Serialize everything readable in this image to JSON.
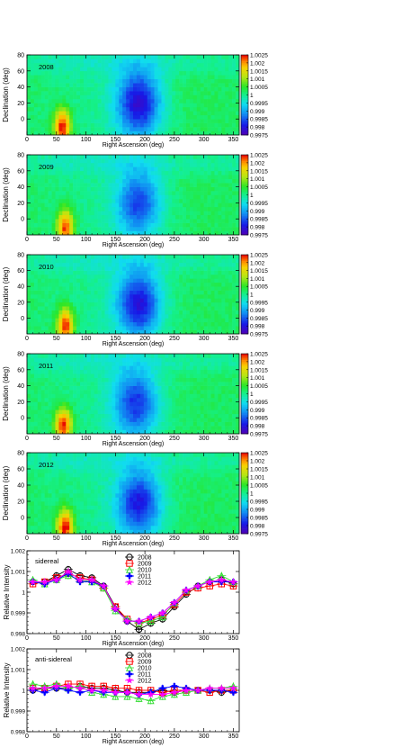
{
  "chart_data": [
    {
      "type": "heatmap",
      "panel_label": "2008",
      "xlabel": "Right Ascension (deg)",
      "ylabel": "Declination (deg)",
      "xlim": [
        0,
        360
      ],
      "ylim": [
        -20,
        80
      ],
      "xticks": [
        "0",
        "50",
        "100",
        "150",
        "200",
        "250",
        "300",
        "350"
      ],
      "yticks": [
        "0",
        "20",
        "40",
        "60",
        "80"
      ],
      "colorbar": {
        "range": [
          0.9975,
          1.0025
        ],
        "ticks": [
          "1.0025",
          "1.002",
          "1.0015",
          "1.001",
          "1.0005",
          "1",
          "0.9995",
          "0.999",
          "0.9985",
          "0.998",
          "0.9975"
        ]
      },
      "excess": {
        "ra": 60,
        "dec": -10,
        "peak": 1.0025
      },
      "deficit": {
        "ra": 190,
        "dec": 20,
        "min": 0.9978
      }
    },
    {
      "type": "heatmap",
      "panel_label": "2009",
      "xlabel": "Right Ascension (deg)",
      "ylabel": "Declination (deg)",
      "xlim": [
        0,
        360
      ],
      "ylim": [
        -20,
        80
      ],
      "xticks": [
        "0",
        "50",
        "100",
        "150",
        "200",
        "250",
        "300",
        "350"
      ],
      "yticks": [
        "0",
        "20",
        "40",
        "60",
        "80"
      ],
      "colorbar": {
        "range": [
          0.9975,
          1.0025
        ],
        "ticks": [
          "1.0025",
          "1.002",
          "1.0015",
          "1.001",
          "1.0005",
          "1",
          "0.9995",
          "0.999",
          "0.9985",
          "0.998",
          "0.9975"
        ]
      },
      "excess": {
        "ra": 65,
        "dec": -10,
        "peak": 1.0023
      },
      "deficit": {
        "ra": 190,
        "dec": 20,
        "min": 0.9983
      }
    },
    {
      "type": "heatmap",
      "panel_label": "2010",
      "xlabel": "Right Ascension (deg)",
      "ylabel": "Declination (deg)",
      "xlim": [
        0,
        360
      ],
      "ylim": [
        -20,
        80
      ],
      "xticks": [
        "0",
        "50",
        "100",
        "150",
        "200",
        "250",
        "300",
        "350"
      ],
      "yticks": [
        "0",
        "20",
        "40",
        "60",
        "80"
      ],
      "colorbar": {
        "range": [
          0.9975,
          1.0025
        ],
        "ticks": [
          "1.0025",
          "1.002",
          "1.0015",
          "1.001",
          "1.0005",
          "1",
          "0.9995",
          "0.999",
          "0.9985",
          "0.998",
          "0.9975"
        ]
      },
      "excess": {
        "ra": 65,
        "dec": -10,
        "peak": 1.0024
      },
      "deficit": {
        "ra": 190,
        "dec": 18,
        "min": 0.9979
      }
    },
    {
      "type": "heatmap",
      "panel_label": "2011",
      "xlabel": "Right Ascension (deg)",
      "ylabel": "Declination (deg)",
      "xlim": [
        0,
        360
      ],
      "ylim": [
        -20,
        80
      ],
      "xticks": [
        "0",
        "50",
        "100",
        "150",
        "200",
        "250",
        "300",
        "350"
      ],
      "yticks": [
        "0",
        "20",
        "40",
        "60",
        "80"
      ],
      "colorbar": {
        "range": [
          0.9975,
          1.0025
        ],
        "ticks": [
          "1.0025",
          "1.002",
          "1.0015",
          "1.001",
          "1.0005",
          "1",
          "0.9995",
          "0.999",
          "0.9985",
          "0.998",
          "0.9975"
        ]
      },
      "excess": {
        "ra": 62,
        "dec": -10,
        "peak": 1.0024
      },
      "deficit": {
        "ra": 185,
        "dec": 18,
        "min": 0.9982
      }
    },
    {
      "type": "heatmap",
      "panel_label": "2012",
      "xlabel": "Right Ascension (deg)",
      "ylabel": "Declination (deg)",
      "xlim": [
        0,
        360
      ],
      "ylim": [
        -20,
        80
      ],
      "xticks": [
        "0",
        "50",
        "100",
        "150",
        "200",
        "250",
        "300",
        "350"
      ],
      "yticks": [
        "0",
        "20",
        "40",
        "60",
        "80"
      ],
      "colorbar": {
        "range": [
          0.9975,
          1.0025
        ],
        "ticks": [
          "1.0025",
          "1.002",
          "1.0015",
          "1.001",
          "1.0005",
          "1",
          "0.9995",
          "0.999",
          "0.9985",
          "0.998",
          "0.9975"
        ]
      },
      "excess": {
        "ra": 65,
        "dec": -12,
        "peak": 1.0025
      },
      "deficit": {
        "ra": 190,
        "dec": 18,
        "min": 0.998
      }
    },
    {
      "type": "line",
      "panel_label": "sidereal",
      "xlabel": "Right Ascension (deg)",
      "ylabel": "Relative Intensity",
      "xlim": [
        0,
        360
      ],
      "ylim": [
        0.998,
        1.002
      ],
      "xticks": [
        "0",
        "50",
        "100",
        "150",
        "200",
        "250",
        "300",
        "350"
      ],
      "yticks": [
        "0.998",
        "0.999",
        "1",
        "1.001",
        "1.002"
      ],
      "legend": "top-center",
      "x": [
        10,
        30,
        50,
        70,
        90,
        110,
        130,
        150,
        170,
        190,
        210,
        230,
        250,
        270,
        290,
        310,
        330,
        350
      ],
      "series": [
        {
          "name": "2008",
          "color": "#000000",
          "marker": "circle",
          "values": [
            1.0005,
            1.0005,
            1.0008,
            1.0011,
            1.0008,
            1.0007,
            1.0003,
            0.9993,
            0.9986,
            0.9982,
            0.9985,
            0.9987,
            0.9993,
            0.9999,
            1.0003,
            1.0005,
            1.0006,
            1.0004
          ]
        },
        {
          "name": "2009",
          "color": "#ff0000",
          "marker": "square",
          "values": [
            1.0004,
            1.0005,
            1.0007,
            1.0009,
            1.0007,
            1.0006,
            1.0002,
            0.9993,
            0.9987,
            0.9985,
            0.9987,
            0.9989,
            0.9994,
            1.0,
            1.0002,
            1.0003,
            1.0004,
            1.0003
          ]
        },
        {
          "name": "2010",
          "color": "#33dd33",
          "marker": "triangle",
          "values": [
            1.0006,
            1.0004,
            1.0006,
            1.0008,
            1.0006,
            1.0005,
            1.0002,
            0.9991,
            0.9987,
            0.9985,
            0.9986,
            0.9988,
            0.9995,
            1.0001,
            1.0003,
            1.0006,
            1.0008,
            1.0005
          ]
        },
        {
          "name": "2011",
          "color": "#0000ff",
          "marker": "cross",
          "values": [
            1.0005,
            1.0004,
            1.0006,
            1.0009,
            1.0005,
            1.0005,
            1.0003,
            0.9992,
            0.9986,
            0.9986,
            0.9988,
            0.999,
            0.9995,
            1.0001,
            1.0003,
            1.0005,
            1.0005,
            1.0005
          ]
        },
        {
          "name": "2012",
          "color": "#ff00ff",
          "marker": "star",
          "values": [
            1.0005,
            1.0005,
            1.0006,
            1.001,
            1.0006,
            1.0006,
            1.0003,
            0.9992,
            0.9986,
            0.9986,
            0.9988,
            0.999,
            0.9995,
            1.0001,
            1.0003,
            1.0005,
            1.0006,
            1.0005
          ]
        }
      ]
    },
    {
      "type": "line",
      "panel_label": "anti-sidereal",
      "xlabel": "Right Ascension (deg)",
      "ylabel": "Relative Intensity",
      "xlim": [
        0,
        360
      ],
      "ylim": [
        0.998,
        1.002
      ],
      "xticks": [
        "0",
        "50",
        "100",
        "150",
        "200",
        "250",
        "300",
        "350"
      ],
      "yticks": [
        "0.998",
        "0.999",
        "1",
        "1.001",
        "1.002"
      ],
      "legend": "top-center",
      "x": [
        10,
        30,
        50,
        70,
        90,
        110,
        130,
        150,
        170,
        190,
        210,
        230,
        250,
        270,
        290,
        310,
        330,
        350
      ],
      "series": [
        {
          "name": "2008",
          "color": "#000000",
          "marker": "circle",
          "values": [
            1.0,
            1.0001,
            1.0001,
            1.0001,
            1.0002,
            1.0001,
            1.0001,
            1.0,
            0.9999,
            0.9999,
            0.9999,
            1.0,
            0.9999,
            1.0,
            1.0,
            1.0,
            0.9999,
            1.0
          ]
        },
        {
          "name": "2009",
          "color": "#ff0000",
          "marker": "square",
          "values": [
            1.0001,
            1.0001,
            1.0002,
            1.0003,
            1.0003,
            1.0002,
            1.0002,
            1.0001,
            1.0001,
            1.0,
            1.0,
            0.9999,
            1.0,
            1.0,
            1.0,
            0.9999,
            1.0,
            1.0
          ]
        },
        {
          "name": "2010",
          "color": "#33dd33",
          "marker": "triangle",
          "values": [
            1.0003,
            1.0002,
            1.0003,
            1.0001,
            1.0002,
            0.9999,
            0.9998,
            0.9997,
            0.9997,
            0.9996,
            0.9995,
            0.9997,
            0.9998,
            0.9999,
            1.0,
            1.0001,
            1.0001,
            1.0002
          ]
        },
        {
          "name": "2011",
          "color": "#0000ff",
          "marker": "cross",
          "values": [
            1.0,
            0.9999,
            1.0001,
            1.0,
            0.9999,
            1.0,
            0.9999,
            0.9999,
            0.9999,
            0.9998,
            0.9999,
            1.0001,
            1.0002,
            1.0001,
            1.0,
            1.0,
            1.0,
            0.9999
          ]
        },
        {
          "name": "2012",
          "color": "#ff00ff",
          "marker": "star",
          "values": [
            1.0001,
            1.0001,
            1.0002,
            1.0002,
            1.0001,
            1.0,
            1.0,
            0.9999,
            0.9999,
            0.9998,
            0.9998,
            0.9998,
            0.9999,
            1.0,
            1.0,
            1.0001,
            1.0001,
            1.0001
          ]
        }
      ]
    }
  ]
}
